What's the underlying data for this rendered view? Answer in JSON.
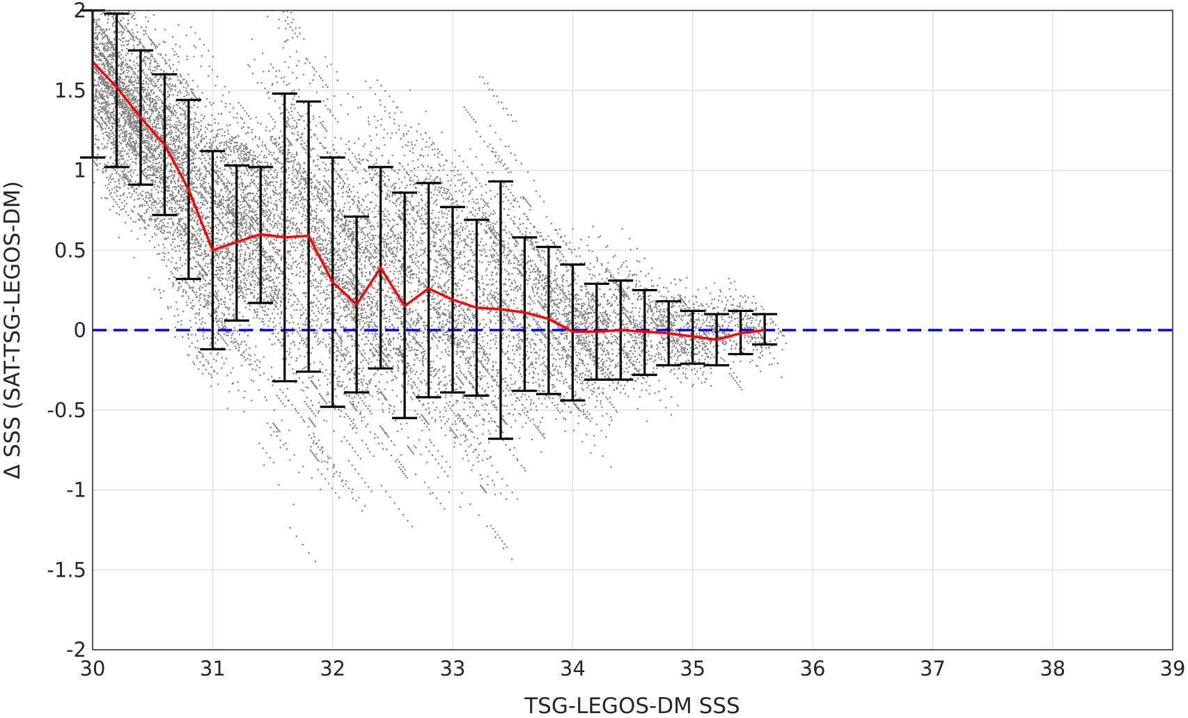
{
  "chart_data": {
    "type": "scatter",
    "xlabel": "TSG-LEGOS-DM SSS",
    "ylabel": "Δ SSS (SAT-TSG-LEGOS-DM)",
    "xlim": [
      30,
      39
    ],
    "ylim": [
      -2,
      2
    ],
    "xticks": [
      30,
      31,
      32,
      33,
      34,
      35,
      36,
      37,
      38,
      39
    ],
    "yticks": [
      -2,
      -1.5,
      -1,
      -0.5,
      0,
      0.5,
      1,
      1.5,
      2
    ],
    "grid": true,
    "colors": {
      "scatter": "#808080",
      "mean_line": "#ff0000",
      "errorbars": "#000000",
      "zero_line": "#0000ff"
    },
    "zero_reference": 0,
    "binned_stats": [
      {
        "x": 30.0,
        "mean": 1.68,
        "lower": 1.08,
        "upper": 2.0
      },
      {
        "x": 30.2,
        "mean": 1.52,
        "lower": 1.02,
        "upper": 1.98
      },
      {
        "x": 30.4,
        "mean": 1.33,
        "lower": 0.91,
        "upper": 1.75
      },
      {
        "x": 30.6,
        "mean": 1.16,
        "lower": 0.72,
        "upper": 1.6
      },
      {
        "x": 30.8,
        "mean": 0.88,
        "lower": 0.32,
        "upper": 1.44
      },
      {
        "x": 31.0,
        "mean": 0.5,
        "lower": -0.12,
        "upper": 1.12
      },
      {
        "x": 31.2,
        "mean": 0.55,
        "lower": 0.06,
        "upper": 1.03
      },
      {
        "x": 31.4,
        "mean": 0.6,
        "lower": 0.17,
        "upper": 1.02
      },
      {
        "x": 31.6,
        "mean": 0.58,
        "lower": -0.32,
        "upper": 1.48
      },
      {
        "x": 31.8,
        "mean": 0.59,
        "lower": -0.26,
        "upper": 1.43
      },
      {
        "x": 32.0,
        "mean": 0.3,
        "lower": -0.48,
        "upper": 1.08
      },
      {
        "x": 32.2,
        "mean": 0.16,
        "lower": -0.39,
        "upper": 0.71
      },
      {
        "x": 32.4,
        "mean": 0.39,
        "lower": -0.24,
        "upper": 1.02
      },
      {
        "x": 32.6,
        "mean": 0.15,
        "lower": -0.55,
        "upper": 0.86
      },
      {
        "x": 32.8,
        "mean": 0.26,
        "lower": -0.42,
        "upper": 0.92
      },
      {
        "x": 33.0,
        "mean": 0.19,
        "lower": -0.39,
        "upper": 0.77
      },
      {
        "x": 33.2,
        "mean": 0.14,
        "lower": -0.41,
        "upper": 0.69
      },
      {
        "x": 33.4,
        "mean": 0.13,
        "lower": -0.68,
        "upper": 0.93
      },
      {
        "x": 33.6,
        "mean": 0.11,
        "lower": -0.38,
        "upper": 0.58
      },
      {
        "x": 33.8,
        "mean": 0.07,
        "lower": -0.4,
        "upper": 0.52
      },
      {
        "x": 34.0,
        "mean": -0.01,
        "lower": -0.44,
        "upper": 0.41
      },
      {
        "x": 34.2,
        "mean": -0.01,
        "lower": -0.31,
        "upper": 0.29
      },
      {
        "x": 34.4,
        "mean": 0.0,
        "lower": -0.31,
        "upper": 0.31
      },
      {
        "x": 34.6,
        "mean": -0.01,
        "lower": -0.28,
        "upper": 0.25
      },
      {
        "x": 34.8,
        "mean": -0.02,
        "lower": -0.22,
        "upper": 0.18
      },
      {
        "x": 35.0,
        "mean": -0.04,
        "lower": -0.21,
        "upper": 0.12
      },
      {
        "x": 35.2,
        "mean": -0.06,
        "lower": -0.22,
        "upper": 0.1
      },
      {
        "x": 35.4,
        "mean": -0.02,
        "lower": -0.15,
        "upper": 0.12
      },
      {
        "x": 35.6,
        "mean": 0.0,
        "lower": -0.09,
        "upper": 0.1
      }
    ]
  }
}
